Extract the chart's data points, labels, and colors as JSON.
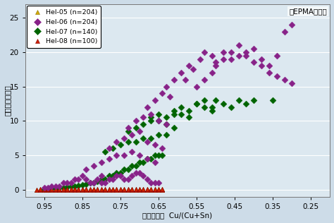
{
  "title_annotation": "（EPMA分析）",
  "xlabel": "銅錫重量比  Cu/(Cu+Sn)",
  "ylabel": "酸素（重量％）",
  "xlim": [
    1.0,
    0.2
  ],
  "ylim": [
    -1.0,
    27
  ],
  "xticks": [
    0.95,
    0.85,
    0.75,
    0.65,
    0.55,
    0.45,
    0.35,
    0.25
  ],
  "yticks": [
    0,
    5,
    10,
    15,
    20,
    25
  ],
  "bg_color": "#cddce8",
  "plot_bg_color": "#dce8f0",
  "grid_color": "#ffffff",
  "series": [
    {
      "label": "Hel-05 (n=204)",
      "color": "#d4aa00",
      "edge_color": "#8b7000",
      "marker": "^",
      "markersize": 4.5,
      "x": [
        0.97,
        0.96,
        0.96,
        0.95,
        0.95,
        0.94,
        0.94,
        0.93,
        0.93,
        0.92,
        0.92,
        0.91,
        0.91,
        0.9,
        0.9,
        0.89,
        0.89,
        0.88,
        0.88,
        0.87,
        0.87,
        0.86,
        0.86,
        0.85,
        0.85,
        0.84,
        0.84,
        0.83,
        0.83,
        0.82,
        0.82,
        0.81,
        0.81,
        0.8,
        0.8,
        0.79,
        0.79,
        0.78,
        0.78,
        0.77,
        0.77,
        0.76,
        0.76,
        0.75,
        0.75,
        0.74,
        0.74,
        0.73,
        0.73,
        0.72,
        0.72,
        0.71,
        0.71,
        0.7,
        0.7,
        0.69,
        0.69,
        0.68,
        0.68,
        0.67,
        0.67,
        0.66,
        0.66,
        0.65,
        0.65,
        0.64,
        0.64
      ],
      "y": [
        0.0,
        0.1,
        0.0,
        0.0,
        0.1,
        0.0,
        0.1,
        0.0,
        0.1,
        0.0,
        0.1,
        0.0,
        0.1,
        0.0,
        0.1,
        0.0,
        0.1,
        0.0,
        0.1,
        0.0,
        0.1,
        0.0,
        0.1,
        0.0,
        0.1,
        0.0,
        0.1,
        0.0,
        0.1,
        0.0,
        0.1,
        0.0,
        0.1,
        0.0,
        0.1,
        0.0,
        0.1,
        0.0,
        0.1,
        0.0,
        0.1,
        0.0,
        0.1,
        0.0,
        0.1,
        0.0,
        0.1,
        0.0,
        0.1,
        0.0,
        0.1,
        0.0,
        0.1,
        0.0,
        0.1,
        0.0,
        0.1,
        0.0,
        0.1,
        0.0,
        0.1,
        0.0,
        0.1,
        0.0,
        0.1,
        0.0,
        0.1
      ]
    },
    {
      "label": "Hel-06 (n=204)",
      "color": "#882288",
      "edge_color": "#882288",
      "marker": "D",
      "markersize": 4.5,
      "x": [
        0.95,
        0.94,
        0.93,
        0.92,
        0.91,
        0.9,
        0.89,
        0.88,
        0.87,
        0.86,
        0.85,
        0.84,
        0.83,
        0.82,
        0.81,
        0.8,
        0.8,
        0.79,
        0.78,
        0.77,
        0.76,
        0.75,
        0.74,
        0.73,
        0.72,
        0.71,
        0.7,
        0.69,
        0.68,
        0.67,
        0.66,
        0.65,
        0.84,
        0.82,
        0.8,
        0.78,
        0.76,
        0.74,
        0.72,
        0.7,
        0.68,
        0.66,
        0.78,
        0.76,
        0.74,
        0.72,
        0.7,
        0.68,
        0.66,
        0.64,
        0.73,
        0.71,
        0.69,
        0.67,
        0.65,
        0.63,
        0.68,
        0.66,
        0.64,
        0.62,
        0.63,
        0.61,
        0.59,
        0.57,
        0.58,
        0.56,
        0.54,
        0.53,
        0.51,
        0.5,
        0.48,
        0.46,
        0.44,
        0.42,
        0.4,
        0.38,
        0.36,
        0.34,
        0.32,
        0.3,
        0.55,
        0.53,
        0.51,
        0.5,
        0.48,
        0.46,
        0.44,
        0.42,
        0.4,
        0.38,
        0.36,
        0.34,
        0.32,
        0.3
      ],
      "y": [
        0.3,
        0.3,
        0.5,
        0.5,
        0.5,
        1.0,
        1.0,
        1.0,
        1.5,
        1.5,
        2.0,
        1.5,
        1.0,
        1.0,
        1.5,
        2.0,
        1.0,
        1.0,
        1.5,
        1.5,
        2.0,
        2.0,
        1.5,
        1.5,
        2.0,
        2.5,
        2.5,
        2.0,
        1.5,
        1.0,
        1.0,
        1.0,
        3.0,
        3.5,
        4.0,
        4.5,
        5.0,
        5.0,
        5.5,
        5.0,
        4.5,
        4.0,
        6.0,
        7.0,
        7.5,
        8.0,
        8.5,
        7.0,
        6.5,
        6.0,
        9.0,
        10.0,
        10.5,
        11.0,
        10.0,
        9.5,
        12.0,
        13.0,
        14.0,
        13.5,
        15.0,
        16.0,
        17.0,
        18.0,
        16.0,
        17.5,
        19.0,
        20.0,
        19.5,
        18.0,
        20.0,
        19.0,
        19.5,
        20.0,
        18.5,
        18.0,
        17.0,
        16.5,
        16.0,
        15.5,
        15.0,
        16.0,
        17.0,
        18.5,
        19.0,
        20.0,
        21.0,
        19.5,
        20.5,
        19.0,
        18.0,
        19.5,
        23.0,
        24.0
      ]
    },
    {
      "label": "Hel-07 (n=140)",
      "color": "#006400",
      "edge_color": "#006400",
      "marker": "D",
      "markersize": 4.5,
      "x": [
        0.95,
        0.94,
        0.93,
        0.92,
        0.91,
        0.9,
        0.89,
        0.88,
        0.87,
        0.86,
        0.85,
        0.84,
        0.83,
        0.82,
        0.81,
        0.8,
        0.79,
        0.78,
        0.77,
        0.76,
        0.75,
        0.74,
        0.73,
        0.72,
        0.71,
        0.7,
        0.69,
        0.68,
        0.67,
        0.66,
        0.65,
        0.64,
        0.79,
        0.77,
        0.75,
        0.73,
        0.71,
        0.69,
        0.67,
        0.65,
        0.63,
        0.73,
        0.71,
        0.69,
        0.67,
        0.65,
        0.63,
        0.61,
        0.67,
        0.65,
        0.63,
        0.61,
        0.59,
        0.57,
        0.61,
        0.59,
        0.57,
        0.55,
        0.53,
        0.51,
        0.55,
        0.53,
        0.51,
        0.5,
        0.48,
        0.46,
        0.44,
        0.42,
        0.4,
        0.35
      ],
      "y": [
        0.1,
        0.1,
        0.2,
        0.2,
        0.3,
        0.3,
        0.4,
        0.5,
        0.5,
        0.6,
        0.7,
        0.8,
        1.0,
        1.0,
        1.2,
        1.5,
        1.5,
        2.0,
        2.0,
        2.5,
        2.5,
        3.0,
        3.0,
        3.5,
        3.5,
        4.0,
        4.0,
        4.5,
        4.5,
        5.0,
        5.0,
        5.0,
        5.5,
        6.0,
        6.5,
        7.0,
        7.0,
        7.5,
        7.5,
        8.0,
        8.0,
        8.5,
        9.0,
        9.5,
        10.0,
        10.0,
        9.5,
        9.0,
        10.5,
        11.0,
        10.5,
        11.5,
        11.0,
        10.5,
        11.0,
        12.0,
        11.5,
        12.5,
        12.0,
        11.5,
        12.5,
        13.0,
        12.0,
        13.0,
        12.5,
        12.0,
        13.0,
        12.5,
        13.0,
        13.0
      ]
    },
    {
      "label": "Hel-08 (n=100)",
      "color": "#cc2200",
      "edge_color": "#880000",
      "marker": "^",
      "markersize": 4.5,
      "x": [
        0.97,
        0.96,
        0.96,
        0.95,
        0.95,
        0.94,
        0.94,
        0.93,
        0.93,
        0.92,
        0.92,
        0.91,
        0.91,
        0.9,
        0.9,
        0.89,
        0.89,
        0.88,
        0.88,
        0.87,
        0.87,
        0.86,
        0.86,
        0.85,
        0.85,
        0.84,
        0.84,
        0.83,
        0.83,
        0.82,
        0.82,
        0.81,
        0.81,
        0.8,
        0.8,
        0.79,
        0.79,
        0.78,
        0.78,
        0.77,
        0.77,
        0.76,
        0.76,
        0.75,
        0.75,
        0.74,
        0.74,
        0.73,
        0.73,
        0.72,
        0.72,
        0.71,
        0.71,
        0.7,
        0.7,
        0.69,
        0.69,
        0.68,
        0.68,
        0.67,
        0.67,
        0.66,
        0.66,
        0.65,
        0.65,
        0.64,
        0.64
      ],
      "y": [
        0.0,
        0.0,
        0.1,
        0.0,
        0.1,
        0.0,
        0.1,
        0.0,
        0.1,
        0.0,
        0.1,
        0.0,
        0.1,
        0.0,
        0.1,
        0.0,
        0.1,
        0.0,
        0.1,
        0.0,
        0.1,
        0.0,
        0.1,
        0.0,
        0.1,
        0.0,
        0.1,
        0.0,
        0.1,
        0.0,
        0.1,
        0.0,
        0.1,
        0.0,
        0.1,
        0.0,
        0.1,
        0.0,
        0.1,
        0.0,
        0.1,
        0.0,
        0.1,
        0.0,
        0.1,
        0.0,
        0.1,
        0.0,
        0.1,
        0.0,
        0.1,
        0.0,
        0.1,
        0.0,
        0.1,
        0.0,
        0.1,
        0.0,
        0.1,
        0.0,
        0.1,
        0.0,
        0.1,
        0.0,
        0.1,
        0.0,
        0.1
      ]
    }
  ]
}
